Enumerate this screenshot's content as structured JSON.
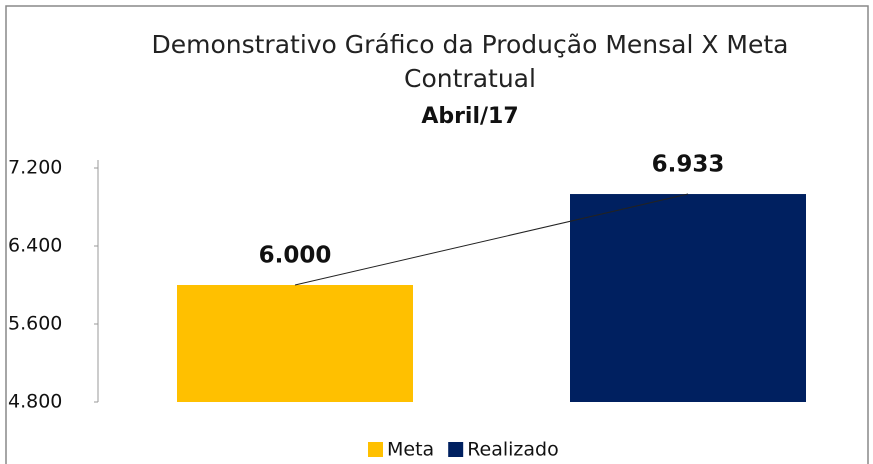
{
  "chart_data": {
    "type": "bar",
    "title": "Demonstrativo Gráfico da Produção Mensal X Meta Contratual",
    "subtitle": "Abril/17",
    "categories": [
      "Meta",
      "Realizado"
    ],
    "values": [
      6000,
      6933
    ],
    "value_labels": [
      "6.000",
      "6.933"
    ],
    "colors": [
      "#ffc000",
      "#002060"
    ],
    "ylim": [
      4800,
      7200
    ],
    "yticks": [
      {
        "value": 4800,
        "label": "4.800"
      },
      {
        "value": 5600,
        "label": "5.600"
      },
      {
        "value": 6400,
        "label": "6.400"
      },
      {
        "value": 7200,
        "label": "7.200"
      }
    ],
    "legend": "bottom"
  }
}
